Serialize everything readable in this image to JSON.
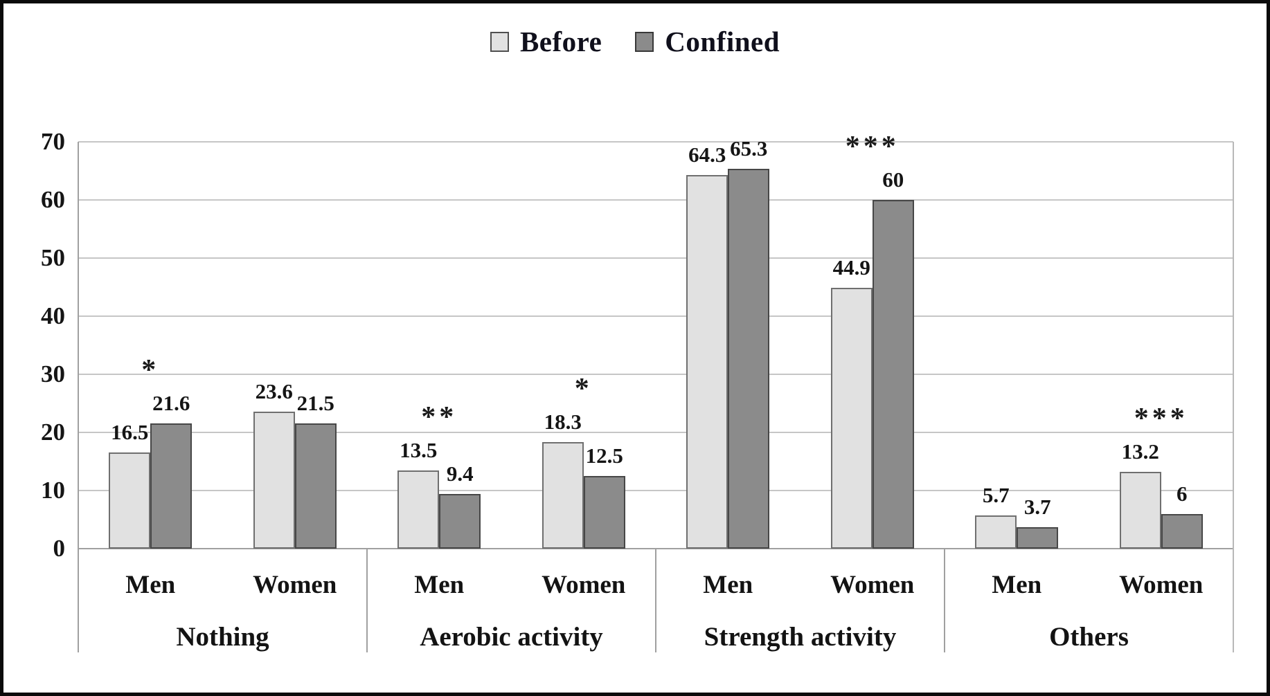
{
  "legend": {
    "items": [
      {
        "label": "Before"
      },
      {
        "label": "Confined"
      }
    ]
  },
  "chart_data": {
    "type": "bar",
    "title": "",
    "xlabel": "",
    "ylabel": "",
    "ylim": [
      0,
      70
    ],
    "yticks": [
      0,
      10,
      20,
      30,
      40,
      50,
      60,
      70
    ],
    "grid": "horizontal",
    "legend_position": "top-center",
    "series_names": [
      "Before",
      "Confined"
    ],
    "colors": {
      "before_fill": "#e1e1e1",
      "before_border": "#6f6f6f",
      "confined_fill": "#8b8b8b",
      "confined_border": "#474747",
      "gridline": "#c6c6c6",
      "axis_line": "#a0a0a0",
      "text": "#151515",
      "frame_border": "#0b0b0b"
    },
    "categories": [
      {
        "label": "Nothing",
        "subgroups": [
          {
            "label": "Men",
            "before": 16.5,
            "confined": 21.6,
            "before_label": "16.5",
            "confined_label": "21.6",
            "significance": "*"
          },
          {
            "label": "Women",
            "before": 23.6,
            "confined": 21.5,
            "before_label": "23.6",
            "confined_label": "21.5",
            "significance": ""
          }
        ]
      },
      {
        "label": "Aerobic activity",
        "subgroups": [
          {
            "label": "Men",
            "before": 13.5,
            "confined": 9.4,
            "before_label": "13.5",
            "confined_label": "9.4",
            "significance": "**"
          },
          {
            "label": "Women",
            "before": 18.3,
            "confined": 12.5,
            "before_label": "18.3",
            "confined_label": "12.5",
            "significance": "*"
          }
        ]
      },
      {
        "label": "Strength activity",
        "subgroups": [
          {
            "label": "Men",
            "before": 64.3,
            "confined": 65.3,
            "before_label": "64.3",
            "confined_label": "65.3",
            "significance": ""
          },
          {
            "label": "Women",
            "before": 44.9,
            "confined": 60,
            "before_label": "44.9",
            "confined_label": "60",
            "significance": "***"
          }
        ]
      },
      {
        "label": "Others",
        "subgroups": [
          {
            "label": "Men",
            "before": 5.7,
            "confined": 3.7,
            "before_label": "5.7",
            "confined_label": "3.7",
            "significance": ""
          },
          {
            "label": "Women",
            "before": 13.2,
            "confined": 6,
            "before_label": "13.2",
            "confined_label": "6",
            "significance": "***"
          }
        ]
      }
    ]
  }
}
